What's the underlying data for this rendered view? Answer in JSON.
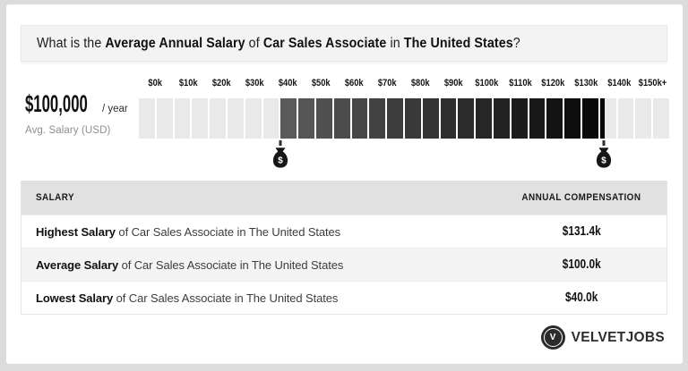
{
  "header": {
    "parts": [
      {
        "text": "What is the ",
        "bold": false
      },
      {
        "text": "Average Annual Salary",
        "bold": true
      },
      {
        "text": " of ",
        "bold": false
      },
      {
        "text": "Car Sales Associate",
        "bold": true
      },
      {
        "text": " in ",
        "bold": false
      },
      {
        "text": "The United States",
        "bold": true
      },
      {
        "text": "?",
        "bold": false
      }
    ]
  },
  "salary_summary": {
    "amount": "$100,000",
    "per": "/ year",
    "caption": "Avg. Salary (USD)"
  },
  "chart_data": {
    "type": "bar",
    "subtype": "salary-range-strip",
    "title": "What is the Average Annual Salary of Car Sales Associate in The United States?",
    "tick_labels": [
      "$0k",
      "$10k",
      "$20k",
      "$30k",
      "$40k",
      "$50k",
      "$60k",
      "$70k",
      "$80k",
      "$90k",
      "$100k",
      "$110k",
      "$120k",
      "$130k",
      "$140k",
      "$150k+"
    ],
    "axis_min_k": 0,
    "axis_max_k": 150,
    "segment_k": 5,
    "range": {
      "low_k": 40.0,
      "high_k": 131.4
    },
    "average": {
      "value_k": 100.0,
      "display": "$100,000 / year",
      "caption": "Avg. Salary (USD)"
    },
    "markers": [
      {
        "name": "lowest-salary",
        "value_k": 40.0,
        "label": "$40.0k"
      },
      {
        "name": "highest-salary",
        "value_k": 131.4,
        "label": "$131.4k"
      }
    ],
    "colors": {
      "track": "#e9e9e9",
      "fill_start": "#5c5c5c",
      "fill_end": "#060606",
      "marker": "#161616"
    },
    "grid": "off",
    "legend": "none"
  },
  "table": {
    "headers": [
      "SALARY",
      "ANNUAL COMPENSATION"
    ],
    "rows": [
      {
        "label_bold": "Highest Salary",
        "label_rest": " of Car Sales Associate in The United States",
        "value": "$131.4k"
      },
      {
        "label_bold": "Average Salary",
        "label_rest": " of Car Sales Associate in The United States",
        "value": "$100.0k"
      },
      {
        "label_bold": "Lowest Salary",
        "label_rest": " of Car Sales Associate in The United States",
        "value": "$40.0k"
      }
    ]
  },
  "footer": {
    "brand": "VELVETJOBS",
    "logo_letter": "V"
  }
}
